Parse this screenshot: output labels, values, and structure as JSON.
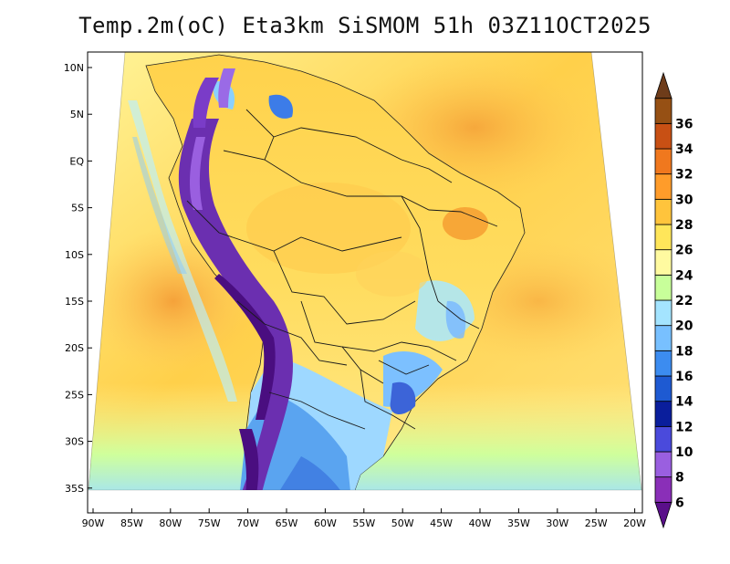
{
  "title": "Temp.2m(oC) Eta3km SiSMOM 51h 03Z11OCT2025",
  "lat_labels": [
    "10N",
    "5N",
    "EQ",
    "5S",
    "10S",
    "15S",
    "20S",
    "25S",
    "30S",
    "35S"
  ],
  "lon_labels": [
    "90W",
    "85W",
    "80W",
    "75W",
    "70W",
    "65W",
    "60W",
    "55W",
    "50W",
    "45W",
    "40W",
    "35W",
    "30W",
    "25W",
    "20W"
  ],
  "colorbar": {
    "labels": [
      "6",
      "8",
      "10",
      "12",
      "14",
      "16",
      "18",
      "20",
      "22",
      "24",
      "26",
      "28",
      "30",
      "32",
      "34",
      "36"
    ],
    "colors": [
      "#5a0f8a",
      "#8a2fb8",
      "#9a5fe0",
      "#4a4adc",
      "#0a1e9c",
      "#1e5ad2",
      "#3c8cf0",
      "#78c0ff",
      "#a4e4ff",
      "#c8ff9a",
      "#fffaa0",
      "#ffe65a",
      "#ffc43c",
      "#ff9c2a",
      "#f0781e",
      "#c85014",
      "#965014",
      "#6e3c1a"
    ]
  },
  "legend": {
    "units": "oC",
    "variable": "Temp.2m",
    "model": "Eta3km SiSMOM",
    "forecast": "51h",
    "valid": "03Z11OCT2025"
  }
}
